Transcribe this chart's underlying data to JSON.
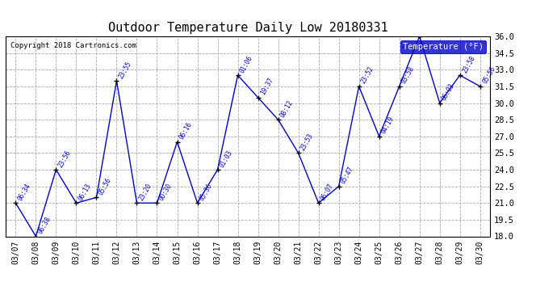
{
  "title": "Outdoor Temperature Daily Low 20180331",
  "copyright": "Copyright 2018 Cartronics.com",
  "legend_label": "Temperature (°F)",
  "dates": [
    "03/07",
    "03/08",
    "03/09",
    "03/10",
    "03/11",
    "03/12",
    "03/13",
    "03/14",
    "03/15",
    "03/16",
    "03/17",
    "03/18",
    "03/19",
    "03/20",
    "03/21",
    "03/22",
    "03/23",
    "03/24",
    "03/25",
    "03/26",
    "03/27",
    "03/28",
    "03/29",
    "03/30"
  ],
  "values": [
    21.0,
    18.0,
    24.0,
    21.0,
    21.5,
    32.0,
    21.0,
    21.0,
    26.5,
    21.0,
    24.0,
    32.5,
    30.5,
    28.5,
    25.5,
    21.0,
    22.5,
    31.5,
    27.0,
    31.5,
    36.0,
    30.0,
    32.5,
    31.5
  ],
  "labels": [
    "06:34",
    "06:38",
    "23:56",
    "06:13",
    "05:56",
    "23:55",
    "23:20",
    "00:30",
    "06:16",
    "05:36",
    "01:03",
    "01:06",
    "19:37",
    "08:12",
    "23:53",
    "06:07",
    "05:47",
    "23:52",
    "04:19",
    "03:58",
    "",
    "06:03",
    "23:58",
    "05:56"
  ],
  "ylim_min": 18.0,
  "ylim_max": 36.0,
  "yticks": [
    18.0,
    19.5,
    21.0,
    22.5,
    24.0,
    25.5,
    27.0,
    28.5,
    30.0,
    31.5,
    33.0,
    34.5,
    36.0
  ],
  "line_color": "#0000cc",
  "marker_color": "#000000",
  "bg_color": "#ffffff",
  "grid_color": "#aaaaaa",
  "title_color": "#000000",
  "label_color": "#0000cc",
  "legend_bg": "#0000cc",
  "legend_fg": "#ffffff"
}
